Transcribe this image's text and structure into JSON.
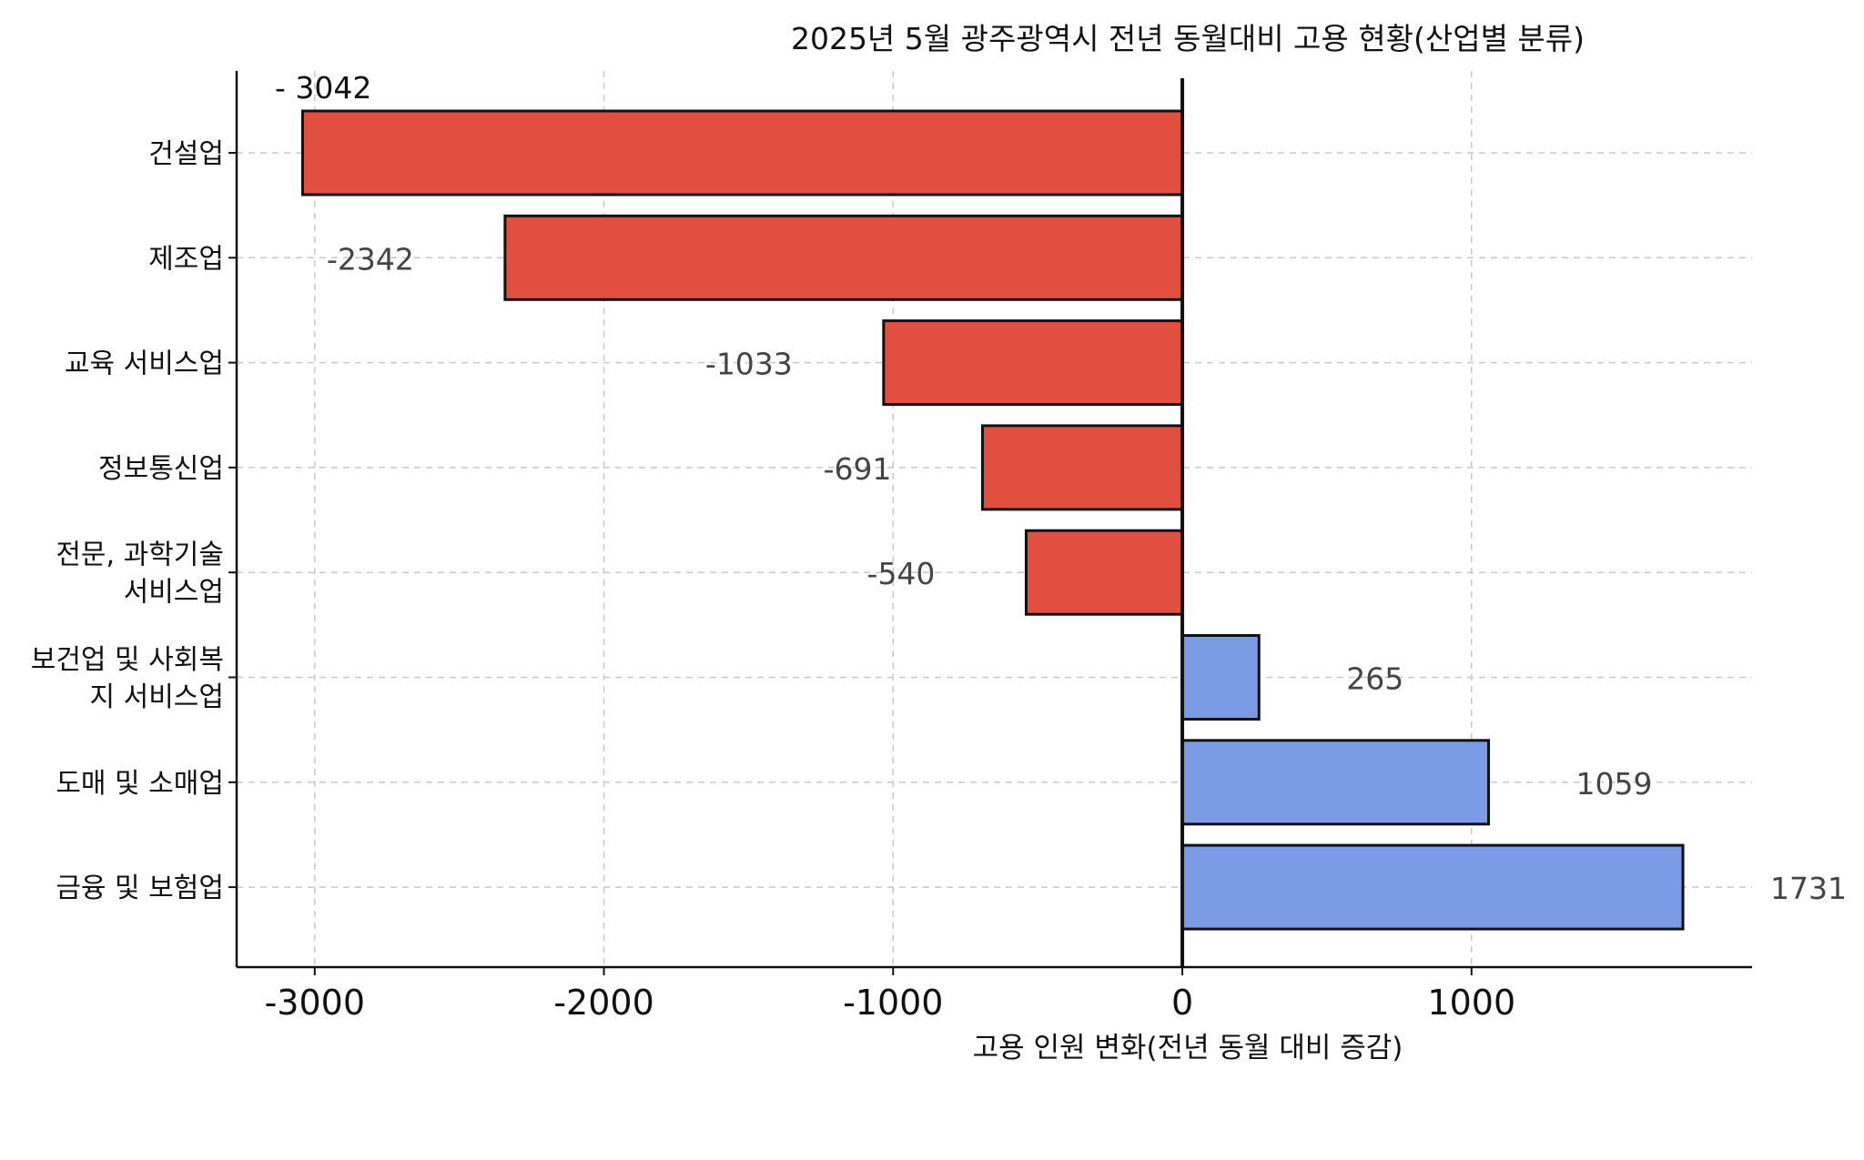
{
  "chart_data": {
    "type": "bar",
    "orientation": "horizontal",
    "title": "2025년 5월 광주광역시 전년 동월대비 고용 현황(산업별 분류)",
    "xlabel": "고용 인원 변화(전년 동월 대비 증감)",
    "ylabel": "",
    "xlim": [
      -3270,
      1970
    ],
    "xticks": [
      -3000,
      -2000,
      -1000,
      0,
      1000
    ],
    "xtick_labels": [
      "-3000",
      "-2000",
      "-1000",
      "0",
      "1000"
    ],
    "grid": true,
    "categories": [
      [
        "건설업"
      ],
      [
        "제조업"
      ],
      [
        "교육 서비스업"
      ],
      [
        "정보통신업"
      ],
      [
        "전문, 과학기술",
        "서비스업"
      ],
      [
        "보건업 및 사회복",
        "지 서비스업"
      ],
      [
        "도매 및 소매업"
      ],
      [
        "금융 및 보험업"
      ]
    ],
    "values": [
      -3042,
      -2342,
      -1033,
      -691,
      -540,
      265,
      1059,
      1731
    ],
    "value_labels": [
      "- 3042",
      "-2342",
      "-1033",
      "-691",
      "-540",
      "265",
      "1059",
      "1731"
    ],
    "colors": {
      "negative": "#e14f41",
      "positive": "#7b9be6",
      "edge": "#111111",
      "grid": "#c8c8c8",
      "axis": "#111111",
      "label": "#444444"
    }
  }
}
